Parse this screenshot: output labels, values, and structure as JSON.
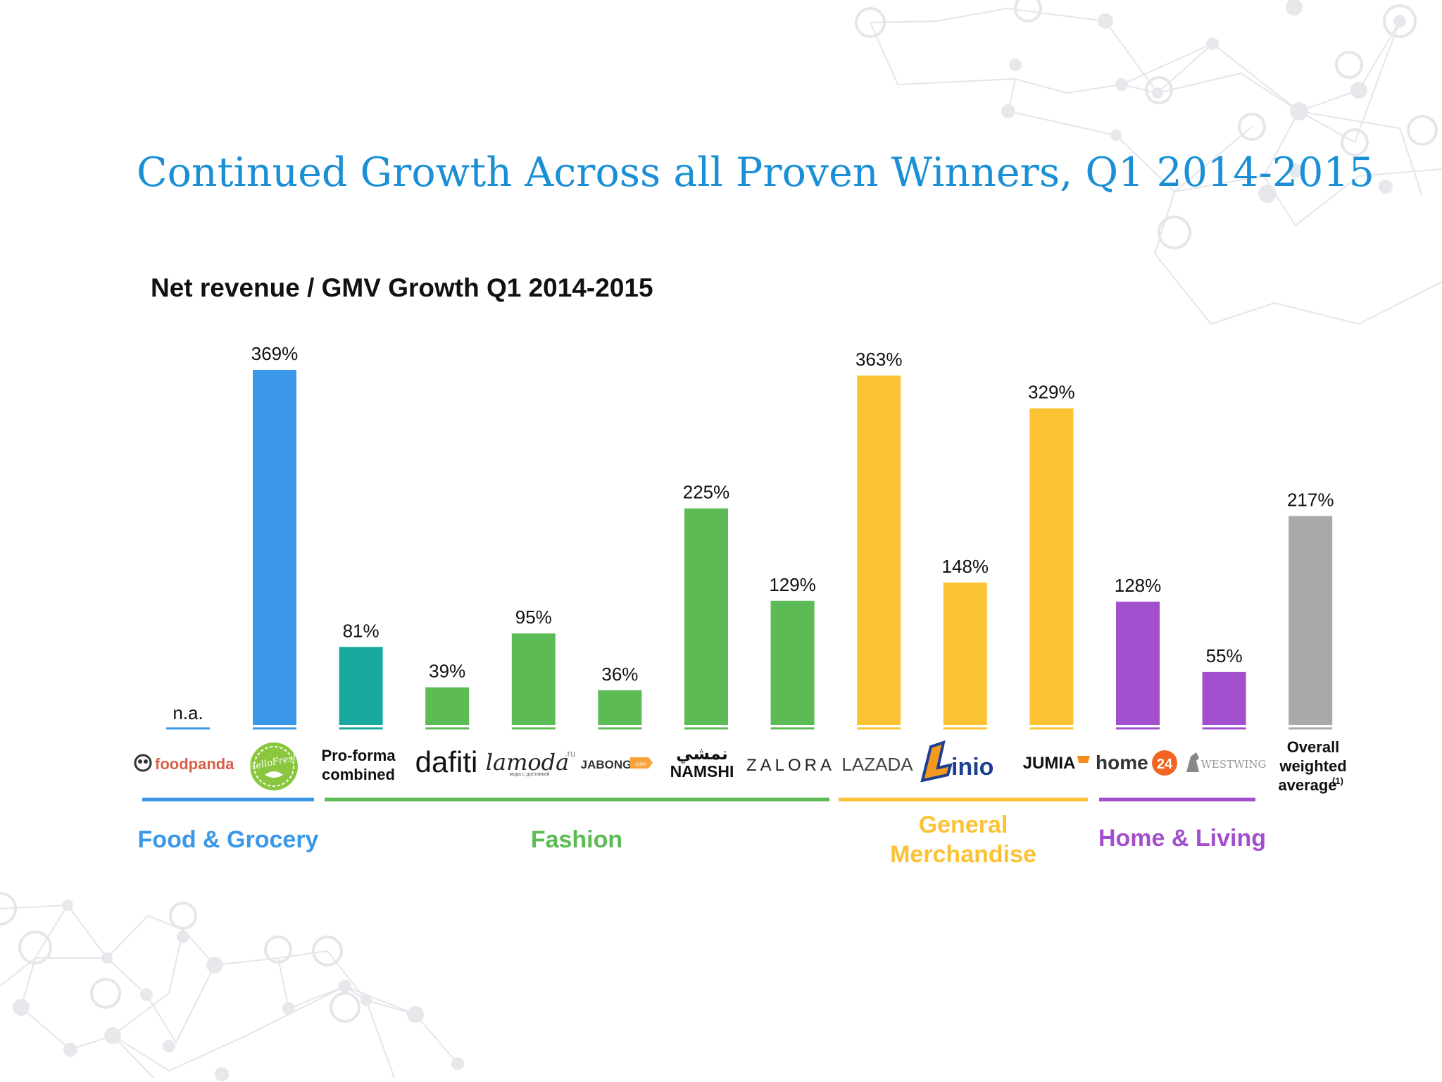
{
  "slide": {
    "title": "Continued Growth Across all Proven Winners, Q1 2014-2015"
  },
  "colors": {
    "title": "#1a8fd6",
    "food": "#3b97e8",
    "proforma": "#17a8a0",
    "fashion": "#5dbb56",
    "general": "#fbc234",
    "home": "#a24fcd",
    "overall": "#a9a8ab"
  },
  "chart_data": {
    "type": "bar",
    "title": "Net revenue / GMV Growth Q1 2014-2015",
    "ylim": [
      0,
      400
    ],
    "grid": false,
    "bars": [
      {
        "label": "foodpanda",
        "value": null,
        "value_label": "n.a.",
        "color": "#3b97e8",
        "group": "food"
      },
      {
        "label": "HelloFresh",
        "value": 369,
        "value_label": "369%",
        "color": "#3b97e8",
        "group": "food"
      },
      {
        "label": "Pro-forma combined",
        "value": 81,
        "value_label": "81%",
        "color": "#17a8a0",
        "group": "fashion"
      },
      {
        "label": "dafiti",
        "value": 39,
        "value_label": "39%",
        "color": "#5dbb56",
        "group": "fashion"
      },
      {
        "label": "lamoda",
        "value": 95,
        "value_label": "95%",
        "color": "#5dbb56",
        "group": "fashion"
      },
      {
        "label": "JABONG",
        "value": 36,
        "value_label": "36%",
        "color": "#5dbb56",
        "group": "fashion"
      },
      {
        "label": "NAMSHI",
        "value": 225,
        "value_label": "225%",
        "color": "#5dbb56",
        "group": "fashion"
      },
      {
        "label": "ZALORA",
        "value": 129,
        "value_label": "129%",
        "color": "#5dbb56",
        "group": "fashion"
      },
      {
        "label": "LAZADA",
        "value": 363,
        "value_label": "363%",
        "color": "#fbc234",
        "group": "general"
      },
      {
        "label": "Linio",
        "value": 148,
        "value_label": "148%",
        "color": "#fbc234",
        "group": "general"
      },
      {
        "label": "JUMIA",
        "value": 329,
        "value_label": "329%",
        "color": "#fbc234",
        "group": "general"
      },
      {
        "label": "home24",
        "value": 128,
        "value_label": "128%",
        "color": "#a24fcd",
        "group": "home"
      },
      {
        "label": "WESTWING",
        "value": 55,
        "value_label": "55%",
        "color": "#a24fcd",
        "group": "home"
      },
      {
        "label": "Overall weighted average",
        "value": 217,
        "value_label": "217%",
        "color": "#a9a8ab",
        "group": "overall"
      }
    ],
    "logos": {
      "foodpanda": "foodpanda",
      "hellofresh": "HelloFresh",
      "proforma_line1": "Pro-forma",
      "proforma_line2": "combined",
      "dafiti": "dafiti",
      "lamoda": "lamoda",
      "lamoda_tld": ".ru",
      "lamoda_sub": "мода с доставкой",
      "jabong": "JABONG",
      "jabong_tag": ".com",
      "namshi_ar": "نمشي",
      "namshi": "NAMSHI",
      "zalora": "ZALORA",
      "lazada": "LAZADA",
      "linio": "inio",
      "jumia": "JUMIA",
      "home24_word": "home",
      "home24_num": "24",
      "westwing": "WESTWING",
      "overall_line1": "Overall",
      "overall_line2": "weighted",
      "overall_line3": "average",
      "overall_sup": "(1)"
    },
    "groups": [
      {
        "key": "food",
        "line1": "Food & Grocery",
        "line2": "",
        "color": "#3b97e8"
      },
      {
        "key": "fashion",
        "line1": "Fashion",
        "line2": "",
        "color": "#5dbb56"
      },
      {
        "key": "general",
        "line1": "General",
        "line2": "Merchandise",
        "color": "#fbc234"
      },
      {
        "key": "home",
        "line1": "Home & Living",
        "line2": "",
        "color": "#a24fcd"
      }
    ]
  }
}
